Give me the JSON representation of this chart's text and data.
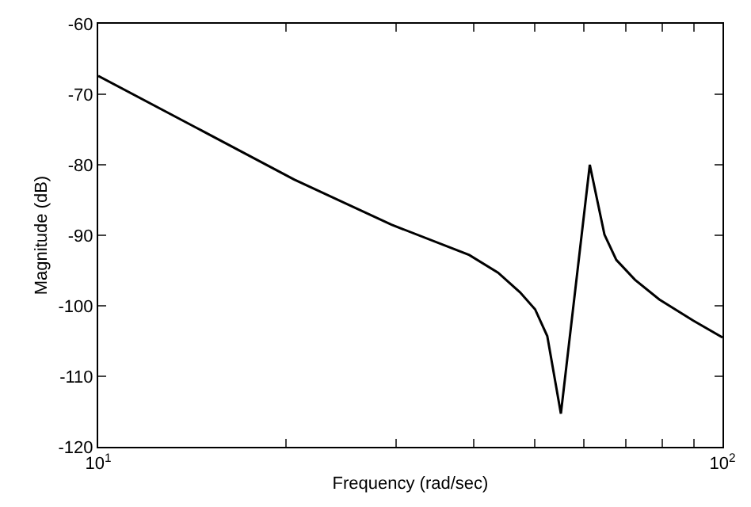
{
  "chart_data": {
    "type": "line",
    "xlabel": "Frequency (rad/sec)",
    "ylabel": "Magnitude (dB)",
    "log": "x",
    "x": [
      10,
      14.4,
      20.6,
      29.5,
      39.3,
      43.7,
      47.4,
      50.1,
      52.4,
      55.1,
      61.3,
      64.7,
      67.6,
      72.4,
      79.2,
      89.8,
      100
    ],
    "series": [
      {
        "color": "#000000",
        "values": [
          -67.4,
          -74.8,
          -82.1,
          -88.5,
          -92.8,
          -95.3,
          -98.1,
          -100.5,
          -104.3,
          -115.3,
          -80.0,
          -89.9,
          -93.5,
          -96.3,
          -99.1,
          -102.1,
          -104.5
        ]
      }
    ],
    "xlim": [
      10,
      100
    ],
    "xticks": [
      {
        "value": 10,
        "label": "10$^{1}$"
      },
      {
        "value": 20,
        "label": null
      },
      {
        "value": 30,
        "label": null
      },
      {
        "value": 40,
        "label": null
      },
      {
        "value": 50,
        "label": null
      },
      {
        "value": 60,
        "label": null
      },
      {
        "value": 70,
        "label": null
      },
      {
        "value": 80,
        "label": null
      },
      {
        "value": 90,
        "label": null
      },
      {
        "value": 100,
        "label": "10$^{2}$"
      }
    ],
    "ylim": [
      -120,
      -60
    ],
    "yticks": [
      -120,
      -110,
      -100,
      -90,
      -80,
      -70,
      -60
    ],
    "marker": "none",
    "line_style": "solid"
  }
}
